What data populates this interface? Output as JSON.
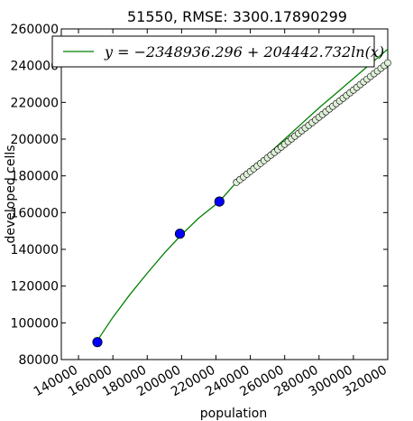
{
  "chart_data": {
    "type": "scatter",
    "title": "51550, RMSE: 3300.17890299",
    "xlabel": "population",
    "ylabel": "developed cells",
    "xlim": [
      130000,
      320000
    ],
    "ylim": [
      80000,
      260000
    ],
    "xticks": [
      "140000",
      "160000",
      "180000",
      "200000",
      "220000",
      "240000",
      "260000",
      "280000",
      "300000",
      "320000"
    ],
    "yticks": [
      "80000",
      "100000",
      "120000",
      "140000",
      "160000",
      "180000",
      "200000",
      "220000",
      "240000",
      "260000"
    ],
    "legend": {
      "position": "top",
      "label": "y = −2348936.296 + 204442.732ln(x)"
    },
    "fit": {
      "name": "y = −2348936.296 + 204442.732ln(x)",
      "color": "#008000",
      "x": [
        150000,
        160000,
        170000,
        180000,
        190000,
        200000,
        210000,
        222000,
        230000,
        240000,
        250000,
        260000,
        270000,
        280000,
        290000,
        300000,
        310000,
        320000
      ],
      "y": [
        89000,
        103000,
        115500,
        127000,
        138000,
        148000,
        157000,
        166000,
        174500,
        183000,
        191500,
        200000,
        208500,
        217000,
        225000,
        233000,
        241000,
        249000
      ]
    },
    "observed": {
      "color": "#0000ff",
      "points": [
        {
          "x": 151000,
          "y": 89500
        },
        {
          "x": 199000,
          "y": 148500
        },
        {
          "x": 222000,
          "y": 166000
        }
      ]
    },
    "projected": {
      "color": "#dff0d8",
      "x_start": 232000,
      "x_end": 320000,
      "x_step": 2000,
      "y_start": 176500,
      "y_end": 241500
    }
  }
}
